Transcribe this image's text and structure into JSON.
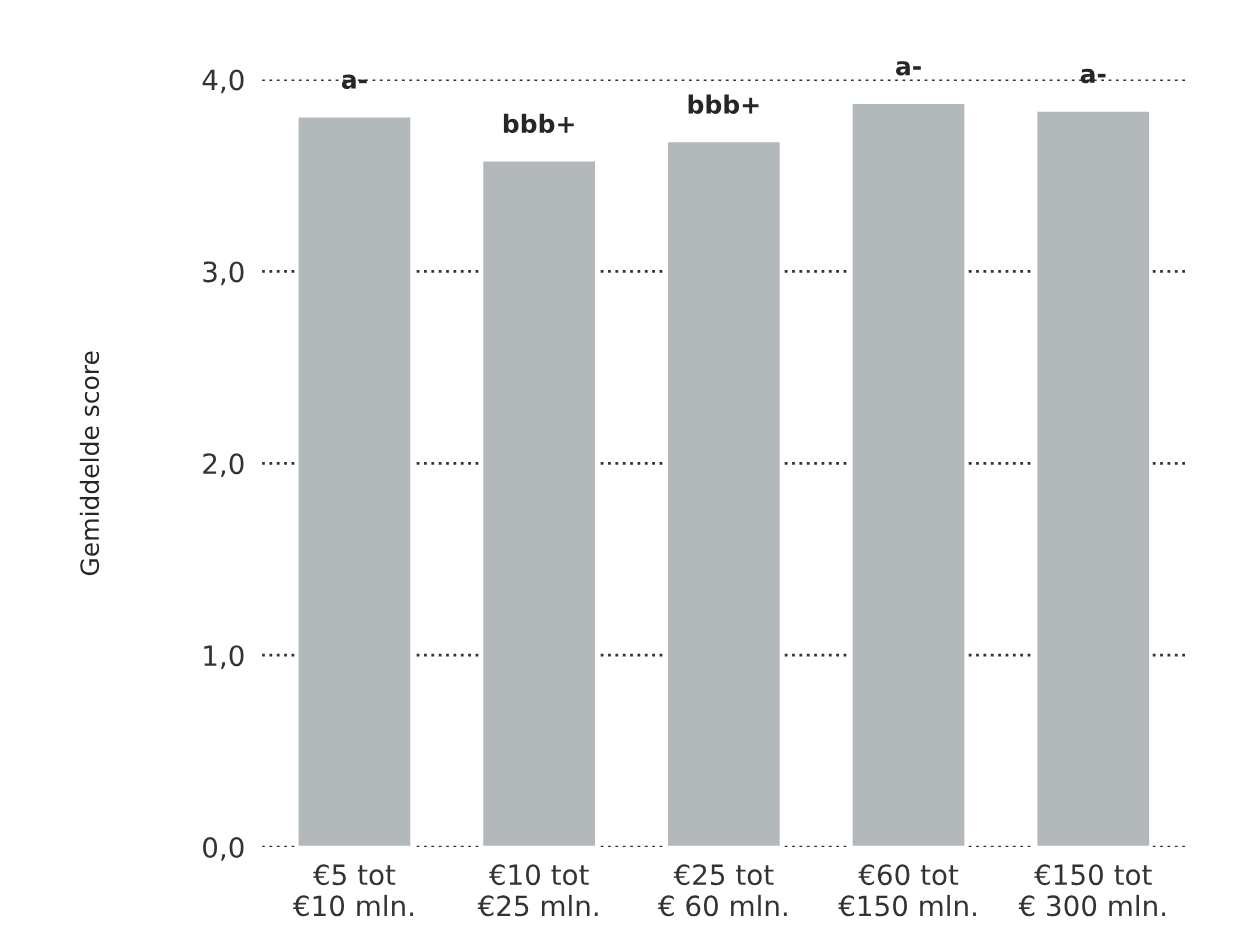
{
  "chart_data": {
    "type": "bar",
    "ylabel": "Gemiddelde score",
    "categories": [
      "€5 tot\n€10 mln.",
      "€10 tot\n€25 mln.",
      "€25 tot\n€ 60 mln.",
      "€60 tot\n€150 mln.",
      "€150 tot\n€ 300 mln."
    ],
    "values": [
      3.81,
      3.58,
      3.68,
      3.88,
      3.84
    ],
    "value_labels": [
      "a-",
      "bbb+",
      "bbb+",
      "a-",
      "a-"
    ],
    "color": "#b3b8ba",
    "ylim": [
      0,
      4
    ],
    "yticks": [
      {
        "value": 0,
        "label": "0,0"
      },
      {
        "value": 1,
        "label": "1,0"
      },
      {
        "value": 2,
        "label": "2,0"
      },
      {
        "value": 3,
        "label": "3,0"
      },
      {
        "value": 4,
        "label": "4,0"
      }
    ],
    "grid": "y",
    "line_style": "dotted"
  }
}
